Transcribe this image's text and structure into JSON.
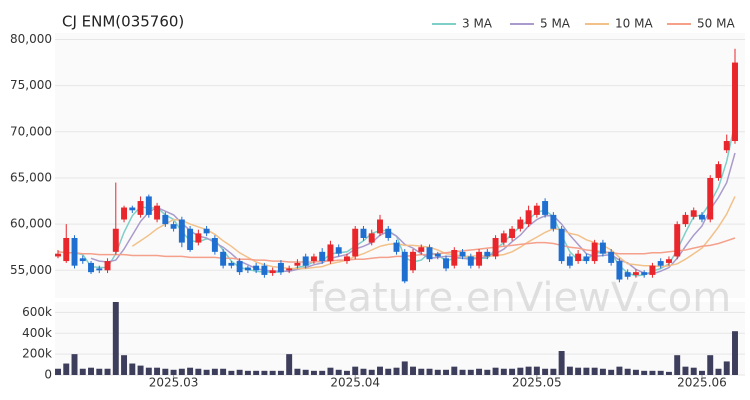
{
  "chart_data": {
    "type": "candlestick",
    "title": "CJ ENM(035760)",
    "watermark": "feature.enViewV.com",
    "up_color": "#e8262b",
    "down_color": "#1f6fd1",
    "grid": true,
    "categories": [
      null,
      null,
      null,
      null,
      null,
      null,
      null,
      null,
      null,
      null,
      null,
      null,
      null,
      null,
      "2025.03",
      null,
      null,
      null,
      null,
      null,
      null,
      null,
      null,
      null,
      null,
      null,
      null,
      null,
      null,
      null,
      null,
      null,
      null,
      null,
      null,
      null,
      "2025.04",
      null,
      null,
      null,
      null,
      null,
      null,
      null,
      null,
      null,
      null,
      null,
      null,
      null,
      null,
      null,
      null,
      null,
      null,
      null,
      null,
      null,
      "2025.05",
      null,
      null,
      null,
      null,
      null,
      null,
      null,
      null,
      null,
      null,
      null,
      null,
      null,
      null,
      null,
      null,
      null,
      null,
      null,
      "2025.06",
      null,
      null,
      null,
      null
    ],
    "open": [
      56500,
      56000,
      58500,
      56300,
      55800,
      55200,
      55000,
      57000,
      60500,
      61800,
      61000,
      63000,
      60500,
      61000,
      60000,
      60500,
      59500,
      58000,
      59500,
      58500,
      57000,
      55800,
      56000,
      55300,
      55500,
      55500,
      54700,
      55800,
      55000,
      55500,
      56500,
      56000,
      57000,
      56000,
      57500,
      56000,
      56500,
      59500,
      58000,
      59000,
      59500,
      58000,
      57000,
      55000,
      57000,
      57500,
      56800,
      56300,
      55500,
      57000,
      56500,
      55500,
      57000,
      56500,
      58000,
      58500,
      59500,
      60000,
      61000,
      62500,
      61000,
      59500,
      56500,
      56000,
      56500,
      56000,
      58000,
      57000,
      56000,
      54800,
      54500,
      54800,
      54500,
      56000,
      55800,
      56500,
      60000,
      60800,
      61000,
      60500,
      65000,
      68000,
      69000
    ],
    "high": [
      57200,
      60000,
      58800,
      56600,
      56000,
      55500,
      56300,
      64500,
      62000,
      62000,
      63000,
      63200,
      62300,
      61300,
      60300,
      60800,
      59800,
      59400,
      59800,
      58800,
      57300,
      56000,
      56300,
      55500,
      55800,
      55800,
      55300,
      56100,
      55500,
      56200,
      56800,
      56800,
      57400,
      58200,
      57800,
      56800,
      59800,
      59800,
      59400,
      61000,
      59800,
      58300,
      57300,
      57300,
      57800,
      57800,
      57000,
      56600,
      57500,
      57300,
      56800,
      57300,
      57300,
      58800,
      59300,
      59800,
      60800,
      62000,
      62300,
      62800,
      61300,
      59800,
      56800,
      57200,
      56800,
      58300,
      58300,
      57300,
      56300,
      55100,
      55100,
      55000,
      55800,
      56300,
      56500,
      60300,
      61300,
      61800,
      61300,
      65300,
      66800,
      69700,
      79000
    ],
    "low": [
      56300,
      55800,
      55200,
      55700,
      54600,
      54700,
      54700,
      56700,
      60200,
      61200,
      60700,
      60700,
      60200,
      59700,
      59200,
      57500,
      57000,
      57700,
      58700,
      56700,
      55200,
      55200,
      54500,
      54700,
      54700,
      54200,
      54400,
      54500,
      54700,
      55200,
      55200,
      55700,
      55700,
      55700,
      56500,
      55700,
      56200,
      58200,
      57700,
      58700,
      58200,
      56700,
      53600,
      54700,
      56700,
      55900,
      56200,
      54900,
      55200,
      56200,
      55200,
      55200,
      56200,
      56200,
      57700,
      58200,
      59200,
      59700,
      60700,
      60700,
      59200,
      55700,
      55200,
      55700,
      55700,
      55700,
      56500,
      55500,
      53700,
      54000,
      54200,
      54200,
      54200,
      55200,
      55500,
      56200,
      59700,
      60500,
      60200,
      60200,
      64700,
      67700,
      68700
    ],
    "close": [
      56800,
      58500,
      55500,
      56000,
      54800,
      55000,
      56000,
      59500,
      61800,
      61500,
      62500,
      61000,
      62000,
      60000,
      59500,
      58000,
      57200,
      59000,
      59000,
      57000,
      55500,
      55500,
      54800,
      55000,
      55000,
      54500,
      55000,
      54800,
      55200,
      55800,
      55500,
      56500,
      56000,
      57800,
      56800,
      56500,
      59500,
      58500,
      59000,
      60500,
      58500,
      57000,
      53800,
      57000,
      57500,
      56200,
      56500,
      55200,
      57200,
      56500,
      55500,
      57000,
      56500,
      58500,
      59000,
      59500,
      60500,
      61500,
      62000,
      61000,
      59500,
      56000,
      55500,
      56800,
      56000,
      58000,
      56800,
      55800,
      54000,
      54300,
      54800,
      54500,
      55500,
      55500,
      56200,
      60000,
      61000,
      61500,
      60500,
      65000,
      66500,
      69000,
      77500
    ],
    "series": [
      {
        "name": "3 MA",
        "color": "#7ecfc8",
        "values": [
          null,
          null,
          56900,
          56700,
          55400,
          55300,
          55300,
          56800,
          59100,
          60900,
          61900,
          61700,
          61800,
          61000,
          60500,
          59200,
          58200,
          58100,
          58400,
          58300,
          57200,
          56000,
          55300,
          55100,
          54900,
          54800,
          54800,
          54800,
          55000,
          55300,
          55500,
          55900,
          56000,
          56800,
          56900,
          57000,
          57600,
          58200,
          59000,
          59300,
          59300,
          58700,
          56400,
          55900,
          56100,
          56900,
          56700,
          56000,
          56300,
          56300,
          56400,
          56300,
          56300,
          57300,
          58000,
          59000,
          59700,
          60500,
          61300,
          61500,
          60800,
          58800,
          57000,
          56100,
          56100,
          56900,
          56900,
          56900,
          55500,
          54700,
          54400,
          54500,
          54900,
          55200,
          55700,
          57200,
          59100,
          60800,
          61000,
          62300,
          64000,
          66800,
          71000
        ]
      },
      {
        "name": "5 MA",
        "color": "#a99bcc",
        "values": [
          null,
          null,
          null,
          null,
          56300,
          56000,
          55900,
          56100,
          57300,
          58800,
          60300,
          61300,
          61800,
          61400,
          61000,
          60100,
          59300,
          58700,
          58500,
          58000,
          57500,
          56800,
          56000,
          55600,
          55200,
          55000,
          54900,
          54900,
          54900,
          55100,
          55300,
          55600,
          55800,
          56300,
          56500,
          56700,
          57300,
          57600,
          58000,
          58800,
          59200,
          58700,
          57800,
          57400,
          56800,
          56300,
          56400,
          56500,
          56500,
          56300,
          56200,
          56300,
          56500,
          56800,
          57300,
          58100,
          58800,
          59800,
          60500,
          60900,
          60900,
          60000,
          58800,
          57800,
          56800,
          56500,
          56600,
          56700,
          56100,
          55800,
          55100,
          54700,
          54600,
          54900,
          55300,
          56300,
          57600,
          58800,
          59800,
          61600,
          62900,
          64500,
          67700
        ]
      },
      {
        "name": "10 MA",
        "color": "#f2c18a",
        "values": [
          null,
          null,
          null,
          null,
          null,
          null,
          null,
          null,
          null,
          57600,
          58200,
          58800,
          59500,
          60000,
          60500,
          60400,
          60000,
          59700,
          59400,
          58900,
          58200,
          57600,
          56900,
          56400,
          55900,
          55600,
          55400,
          55300,
          55200,
          55200,
          55200,
          55300,
          55400,
          55700,
          55900,
          56100,
          56500,
          56800,
          57200,
          57600,
          57800,
          57900,
          57700,
          57700,
          57600,
          57500,
          57200,
          56800,
          56700,
          56500,
          56500,
          56600,
          56500,
          56600,
          56700,
          57000,
          57500,
          58100,
          58600,
          59100,
          59500,
          59400,
          59000,
          58800,
          58300,
          58000,
          57700,
          57200,
          56400,
          55700,
          55600,
          55500,
          55500,
          55400,
          55500,
          55700,
          56200,
          56800,
          57400,
          58500,
          59700,
          61100,
          63000
        ]
      },
      {
        "name": "50 MA",
        "color": "#f4a08a",
        "values": [
          57000,
          56900,
          56900,
          56800,
          56800,
          56700,
          56700,
          56700,
          56700,
          56600,
          56600,
          56600,
          56600,
          56500,
          56500,
          56500,
          56400,
          56400,
          56400,
          56400,
          56300,
          56300,
          56200,
          56200,
          56100,
          56100,
          56000,
          56000,
          55900,
          55900,
          55900,
          55900,
          56000,
          56000,
          56100,
          56100,
          56200,
          56200,
          56300,
          56400,
          56400,
          56500,
          56500,
          56600,
          56700,
          56700,
          56800,
          56900,
          57000,
          57100,
          57200,
          57300,
          57400,
          57500,
          57600,
          57700,
          57800,
          57900,
          58000,
          58000,
          57900,
          57700,
          57500,
          57400,
          57200,
          57100,
          57000,
          56900,
          56800,
          56800,
          56800,
          56800,
          56900,
          56900,
          57000,
          57100,
          57200,
          57400,
          57600,
          57700,
          57900,
          58200,
          58500
        ]
      }
    ],
    "ylim": [
      52000,
      80700
    ],
    "yticks": [
      {
        "value": 55000,
        "label": "55,000"
      },
      {
        "value": 60000,
        "label": "60,000"
      },
      {
        "value": 65000,
        "label": "65,000"
      },
      {
        "value": 70000,
        "label": "70,000"
      },
      {
        "value": 75000,
        "label": "75,000"
      },
      {
        "value": 80000,
        "label": "80,000"
      }
    ],
    "volume": {
      "color": "#3d3d5c",
      "values": [
        60000,
        110000,
        200000,
        60000,
        70000,
        60000,
        60000,
        700000,
        190000,
        110000,
        90000,
        70000,
        70000,
        60000,
        50000,
        60000,
        70000,
        60000,
        50000,
        60000,
        60000,
        40000,
        50000,
        40000,
        40000,
        40000,
        40000,
        40000,
        200000,
        60000,
        50000,
        40000,
        40000,
        70000,
        50000,
        40000,
        80000,
        60000,
        50000,
        80000,
        60000,
        70000,
        130000,
        80000,
        60000,
        60000,
        50000,
        50000,
        80000,
        50000,
        50000,
        60000,
        50000,
        70000,
        60000,
        60000,
        70000,
        80000,
        80000,
        60000,
        60000,
        230000,
        80000,
        70000,
        70000,
        70000,
        60000,
        50000,
        80000,
        60000,
        50000,
        40000,
        40000,
        40000,
        30000,
        190000,
        80000,
        70000,
        40000,
        190000,
        60000,
        130000,
        420000
      ],
      "ylim": [
        0,
        700000
      ],
      "yticks": [
        0,
        {
          "value": 200000,
          "label": "200k"
        },
        {
          "value": 400000,
          "label": "400k"
        },
        {
          "value": 600000,
          "label": "600k"
        }
      ]
    }
  }
}
